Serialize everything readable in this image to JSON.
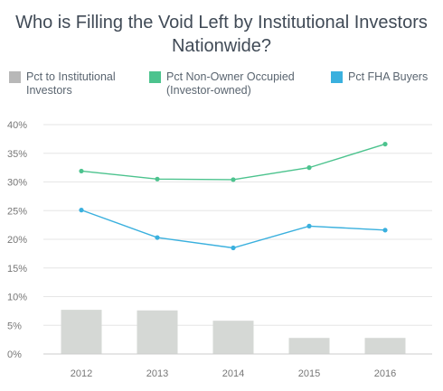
{
  "chart_data": {
    "type": "bar+line",
    "title": "Who is Filling the Void Left by Institutional Investors Nationwide?",
    "categories": [
      "2012",
      "2013",
      "2014",
      "2015",
      "2016"
    ],
    "series": [
      {
        "name": "Pct to Institutional Investors",
        "type": "bar",
        "color": "#d5d8d5",
        "swatch_color": "#b8b8b8",
        "values": [
          7.7,
          7.6,
          5.8,
          2.8,
          2.8
        ]
      },
      {
        "name": "Pct Non-Owner Occupied (Investor-owned)",
        "type": "line",
        "color": "#4cc38e",
        "values": [
          31.9,
          30.5,
          30.4,
          32.5,
          36.6
        ]
      },
      {
        "name": "Pct FHA Buyers",
        "type": "line",
        "color": "#3ab0de",
        "values": [
          25.1,
          20.3,
          18.5,
          22.3,
          21.6
        ]
      }
    ],
    "yticks": [
      "0%",
      "5%",
      "10%",
      "15%",
      "20%",
      "25%",
      "30%",
      "35%",
      "40%"
    ],
    "ylim": [
      0,
      40
    ],
    "grid": true,
    "legend_position": "top"
  }
}
